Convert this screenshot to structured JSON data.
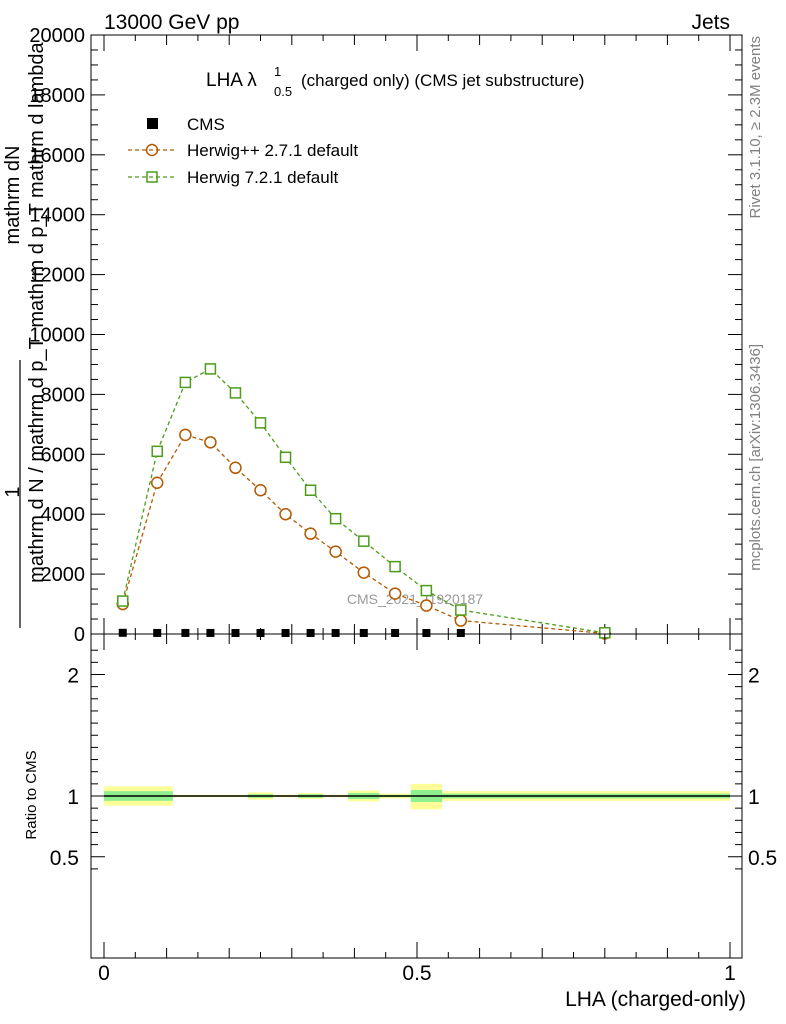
{
  "header": {
    "left": "13000 GeV pp",
    "right": "Jets"
  },
  "side_labels": {
    "rivet": "Rivet 3.1.10, ≥ 2.3M events",
    "mcplots": "mcplots.cern.ch [arXiv:1306.3436]"
  },
  "watermark": "CMS_2021_I1920187",
  "chart_data": [
    {
      "type": "line",
      "title_main": "LHA λ",
      "title_sup": "1",
      "title_sub": "0.5",
      "title_rest": "(charged only) (CMS jet substructure)",
      "ylabel_upper": "mathrm dN",
      "ylabel_upper2": "mathrm d p_T mathrm d lambda",
      "ylabel_one": "1",
      "ylabel_lower": "mathrm d N / mathrm d p_T",
      "ylim": [
        0,
        20000
      ],
      "xlim": [
        -0.02,
        1.02
      ],
      "yticks": [
        0,
        2000,
        4000,
        6000,
        8000,
        10000,
        12000,
        14000,
        16000,
        18000,
        20000
      ],
      "ytick_labels": [
        "0",
        "2000",
        "4000",
        "6000",
        "8000",
        "10000",
        "12000",
        "14000",
        "16000",
        "18000",
        "20000"
      ],
      "legend_position": "top-left",
      "series": [
        {
          "name": "CMS",
          "marker": "filled-square",
          "color": "#000000",
          "x": [
            0.03,
            0.085,
            0.13,
            0.17,
            0.21,
            0.25,
            0.29,
            0.33,
            0.37,
            0.415,
            0.465,
            0.515,
            0.57,
            0.8
          ],
          "y": [
            40,
            35,
            35,
            35,
            30,
            30,
            30,
            25,
            25,
            20,
            20,
            15,
            10,
            5
          ]
        },
        {
          "name": "Herwig++ 2.7.1 default",
          "marker": "open-circle",
          "color": "#b35900",
          "x": [
            0.03,
            0.085,
            0.13,
            0.17,
            0.21,
            0.25,
            0.29,
            0.33,
            0.37,
            0.415,
            0.465,
            0.515,
            0.57,
            0.8
          ],
          "y": [
            1000,
            5050,
            6650,
            6400,
            5550,
            4800,
            4000,
            3350,
            2750,
            2050,
            1350,
            950,
            450,
            20
          ]
        },
        {
          "name": "Herwig 7.2.1 default",
          "marker": "open-square",
          "color": "#4c9c1a",
          "x": [
            0.03,
            0.085,
            0.13,
            0.17,
            0.21,
            0.25,
            0.29,
            0.33,
            0.37,
            0.415,
            0.465,
            0.515,
            0.57,
            0.8
          ],
          "y": [
            1100,
            6100,
            8400,
            8850,
            8050,
            7050,
            5900,
            4800,
            3850,
            3100,
            2250,
            1450,
            800,
            40
          ]
        }
      ]
    },
    {
      "type": "area",
      "ylabel": "Ratio to CMS",
      "xlabel": "LHA (charged-only)",
      "ylim": [
        0.35,
        2.25
      ],
      "xlim": [
        -0.02,
        1.02
      ],
      "yticks": [
        0.5,
        1,
        2
      ],
      "ytick_labels": [
        "0.5",
        "1",
        "2"
      ],
      "xticks": [
        0,
        0.5,
        1
      ],
      "xtick_labels": [
        "0",
        "0.5",
        "1"
      ],
      "reference_line": 1,
      "bins": [
        {
          "lo": 0.0,
          "hi": 0.11,
          "green": [
            0.96,
            1.04
          ],
          "yellow": [
            0.92,
            1.08
          ]
        },
        {
          "lo": 0.11,
          "hi": 0.23,
          "green": [
            0.995,
            1.005
          ],
          "yellow": [
            0.99,
            1.01
          ]
        },
        {
          "lo": 0.23,
          "hi": 0.27,
          "green": [
            0.985,
            1.015
          ],
          "yellow": [
            0.97,
            1.03
          ]
        },
        {
          "lo": 0.27,
          "hi": 0.31,
          "green": [
            0.995,
            1.005
          ],
          "yellow": [
            0.99,
            1.01
          ]
        },
        {
          "lo": 0.31,
          "hi": 0.35,
          "green": [
            0.985,
            1.015
          ],
          "yellow": [
            0.975,
            1.025
          ]
        },
        {
          "lo": 0.35,
          "hi": 0.39,
          "green": [
            0.995,
            1.005
          ],
          "yellow": [
            0.99,
            1.01
          ]
        },
        {
          "lo": 0.39,
          "hi": 0.44,
          "green": [
            0.975,
            1.025
          ],
          "yellow": [
            0.955,
            1.045
          ]
        },
        {
          "lo": 0.44,
          "hi": 0.49,
          "green": [
            0.99,
            1.01
          ],
          "yellow": [
            0.98,
            1.02
          ]
        },
        {
          "lo": 0.49,
          "hi": 0.54,
          "green": [
            0.95,
            1.05
          ],
          "yellow": [
            0.89,
            1.1
          ]
        },
        {
          "lo": 0.54,
          "hi": 1.0,
          "green": [
            0.98,
            1.02
          ],
          "yellow": [
            0.96,
            1.04
          ]
        }
      ]
    }
  ],
  "colors": {
    "band_green": "#90f090",
    "band_yellow": "#ffff99",
    "axis": "#000000",
    "side_text": "#808080"
  }
}
